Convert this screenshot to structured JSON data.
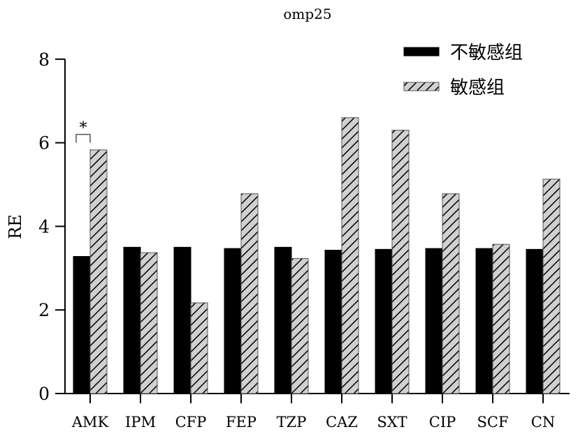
{
  "chart_data": {
    "type": "bar",
    "title": "omp25",
    "xlabel": "",
    "ylabel": "RE",
    "ylim": [
      0,
      8
    ],
    "yticks": [
      0,
      2,
      4,
      6,
      8
    ],
    "categories": [
      "AMK",
      "IPM",
      "CFP",
      "FEP",
      "TZP",
      "CAZ",
      "SXT",
      "CIP",
      "SCF",
      "CN"
    ],
    "series": [
      {
        "name": "不敏感组",
        "style": "solid",
        "color": "#000000",
        "values": [
          3.28,
          3.5,
          3.5,
          3.47,
          3.5,
          3.43,
          3.45,
          3.47,
          3.47,
          3.45
        ]
      },
      {
        "name": "敏感组",
        "style": "hatched",
        "color": "#d0d0d0",
        "values": [
          5.83,
          3.37,
          2.17,
          4.78,
          3.23,
          6.6,
          6.3,
          4.78,
          3.57,
          5.13
        ]
      }
    ],
    "annotations": [
      {
        "category": "AMK",
        "text": "*"
      }
    ],
    "legend_position": "top-right",
    "grid": false
  }
}
